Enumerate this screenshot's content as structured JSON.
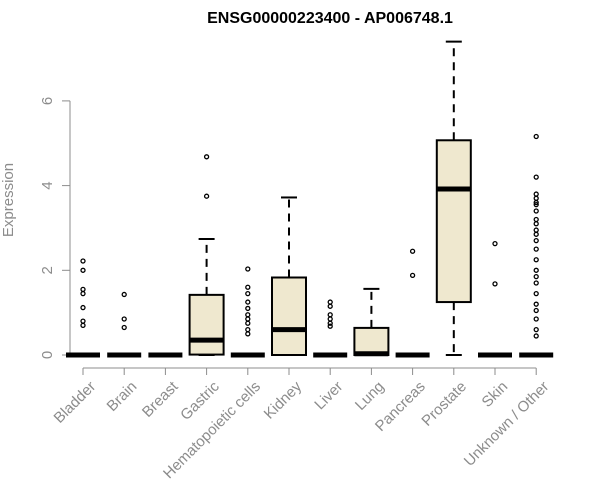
{
  "chart_data": {
    "type": "box",
    "title": "ENSG00000223400 - AP006748.1",
    "xlabel": "",
    "ylabel": "Expression",
    "ylim": [
      0,
      7.45
    ],
    "yticks": [
      0,
      2,
      4,
      6
    ],
    "ytick_labels": [
      "0",
      "2",
      "4",
      "6"
    ],
    "grid": false,
    "legend": "none",
    "box_fill": "#efe8cf",
    "outline_color": "#000000",
    "axis_color": "#8c8c8c",
    "categories": [
      "Bladder",
      "Brain",
      "Breast",
      "Gastric",
      "Hematopoietic cells",
      "Kidney",
      "Liver",
      "Lung",
      "Pancreas",
      "Prostate",
      "Skin",
      "Unknown / Other"
    ],
    "boxes": [
      {
        "min": 0,
        "q1": 0,
        "median": 0,
        "q3": 0,
        "max": 0,
        "outliers": [
          2.22,
          2.0,
          1.55,
          1.45,
          1.12,
          0.8,
          0.7
        ]
      },
      {
        "min": 0,
        "q1": 0,
        "median": 0,
        "q3": 0,
        "max": 0,
        "outliers": [
          1.43,
          0.85,
          0.65
        ]
      },
      {
        "min": 0,
        "q1": 0,
        "median": 0,
        "q3": 0,
        "max": 0,
        "outliers": []
      },
      {
        "min": 0,
        "q1": 0.01,
        "median": 0.35,
        "q3": 1.42,
        "max": 2.74,
        "outliers": [
          3.75,
          4.68
        ]
      },
      {
        "min": 0,
        "q1": 0,
        "median": 0,
        "q3": 0,
        "max": 0,
        "outliers": [
          2.03,
          1.6,
          1.45,
          1.25,
          1.1,
          0.95,
          0.85,
          0.75,
          0.6,
          0.5
        ]
      },
      {
        "min": 0,
        "q1": 0,
        "median": 0.6,
        "q3": 1.83,
        "max": 3.72,
        "outliers": []
      },
      {
        "min": 0,
        "q1": 0,
        "median": 0,
        "q3": 0,
        "max": 0,
        "outliers": [
          1.25,
          1.15,
          0.95,
          0.85,
          0.75,
          0.68
        ]
      },
      {
        "min": 0,
        "q1": 0,
        "median": 0.03,
        "q3": 0.64,
        "max": 1.56,
        "outliers": []
      },
      {
        "min": 0,
        "q1": 0,
        "median": 0,
        "q3": 0,
        "max": 0,
        "outliers": [
          2.45,
          1.88
        ]
      },
      {
        "min": 0,
        "q1": 1.25,
        "median": 3.92,
        "q3": 5.07,
        "max": 7.4,
        "outliers": []
      },
      {
        "min": 0,
        "q1": 0,
        "median": 0,
        "q3": 0,
        "max": 0,
        "outliers": [
          2.63,
          1.68
        ]
      },
      {
        "min": 0,
        "q1": 0,
        "median": 0,
        "q3": 0,
        "max": 0,
        "outliers": [
          5.16,
          4.2,
          3.8,
          3.7,
          3.6,
          3.55,
          3.4,
          3.2,
          3.1,
          2.95,
          2.85,
          2.7,
          2.5,
          2.25,
          2.0,
          1.85,
          1.7,
          1.45,
          1.2,
          1.05,
          0.85,
          0.6,
          0.45
        ]
      }
    ]
  }
}
